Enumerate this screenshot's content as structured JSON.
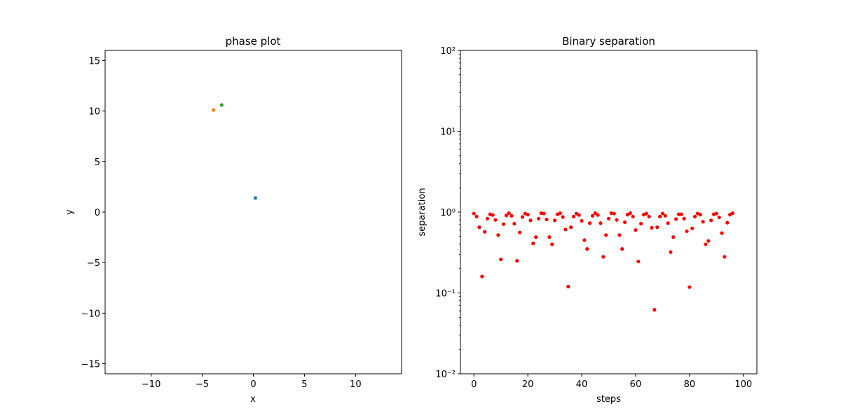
{
  "chart_data": [
    {
      "type": "scatter",
      "title": "phase plot",
      "xlabel": "x",
      "ylabel": "y",
      "xlim": [
        -14.5,
        14.5
      ],
      "ylim": [
        -16,
        16
      ],
      "xticks": [
        -10,
        -5,
        0,
        5,
        10
      ],
      "xtick_labels": [
        "−10",
        "−5",
        "0",
        "5",
        "10"
      ],
      "yticks": [
        -15,
        -10,
        -5,
        0,
        5,
        10,
        15
      ],
      "ytick_labels": [
        "−15",
        "−10",
        "−5",
        "0",
        "5",
        "10",
        "15"
      ],
      "grid": false,
      "series": [
        {
          "color": "#1f77b4",
          "points": [
            [
              0.2,
              1.4
            ]
          ]
        },
        {
          "color": "#ff7f0e",
          "points": [
            [
              -3.9,
              10.1
            ]
          ]
        },
        {
          "color": "#2ca02c",
          "points": [
            [
              -3.1,
              10.6
            ]
          ]
        }
      ]
    },
    {
      "type": "scatter",
      "title": "Binary separation",
      "xlabel": "steps",
      "ylabel": "separation",
      "xlim": [
        -5,
        105
      ],
      "yscale": "log",
      "ylim": [
        0.01,
        100
      ],
      "xticks": [
        0,
        20,
        40,
        60,
        80,
        100
      ],
      "xtick_labels": [
        "0",
        "20",
        "40",
        "60",
        "80",
        "100"
      ],
      "yticks": [
        0.01,
        0.1,
        1,
        10,
        100
      ],
      "ytick_labels": [
        "10⁻²",
        "10⁻¹",
        "10⁰",
        "10¹",
        "10²"
      ],
      "grid": false,
      "series": [
        {
          "color": "#ff0000",
          "x": [
            0,
            1,
            2,
            3,
            4,
            5,
            6,
            7,
            8,
            9,
            10,
            11,
            12,
            13,
            14,
            15,
            16,
            17,
            18,
            19,
            20,
            21,
            22,
            23,
            24,
            25,
            26,
            27,
            28,
            29,
            30,
            31,
            32,
            33,
            34,
            35,
            36,
            37,
            38,
            39,
            40,
            41,
            42,
            43,
            44,
            45,
            46,
            47,
            48,
            49,
            50,
            51,
            52,
            53,
            54,
            55,
            56,
            57,
            58,
            59,
            60,
            61,
            62,
            63,
            64,
            65,
            66,
            67,
            68,
            69,
            70,
            71,
            72,
            73,
            74,
            75,
            76,
            77,
            78,
            79,
            80,
            81,
            82,
            83,
            84,
            85,
            86,
            87,
            88,
            89,
            90,
            91,
            92,
            93,
            94,
            95,
            96
          ],
          "y": [
            0.96,
            0.88,
            0.65,
            0.16,
            0.57,
            0.83,
            0.94,
            0.92,
            0.8,
            0.52,
            0.26,
            0.71,
            0.91,
            0.97,
            0.9,
            0.72,
            0.25,
            0.56,
            0.87,
            0.96,
            0.93,
            0.79,
            0.41,
            0.49,
            0.83,
            0.97,
            0.96,
            0.81,
            0.49,
            0.4,
            0.79,
            0.94,
            0.97,
            0.87,
            0.61,
            0.12,
            0.65,
            0.88,
            0.96,
            0.92,
            0.78,
            0.45,
            0.35,
            0.73,
            0.9,
            0.97,
            0.92,
            0.73,
            0.28,
            0.52,
            0.83,
            0.97,
            0.96,
            0.8,
            0.52,
            0.35,
            0.75,
            0.93,
            0.97,
            0.88,
            0.6,
            0.245,
            0.72,
            0.93,
            0.96,
            0.88,
            0.64,
            0.062,
            0.65,
            0.88,
            0.96,
            0.9,
            0.73,
            0.32,
            0.49,
            0.82,
            0.94,
            0.94,
            0.83,
            0.58,
            0.118,
            0.63,
            0.88,
            0.96,
            0.93,
            0.76,
            0.4,
            0.44,
            0.79,
            0.94,
            0.96,
            0.86,
            0.55,
            0.28,
            0.74,
            0.93,
            0.97
          ]
        }
      ]
    }
  ]
}
